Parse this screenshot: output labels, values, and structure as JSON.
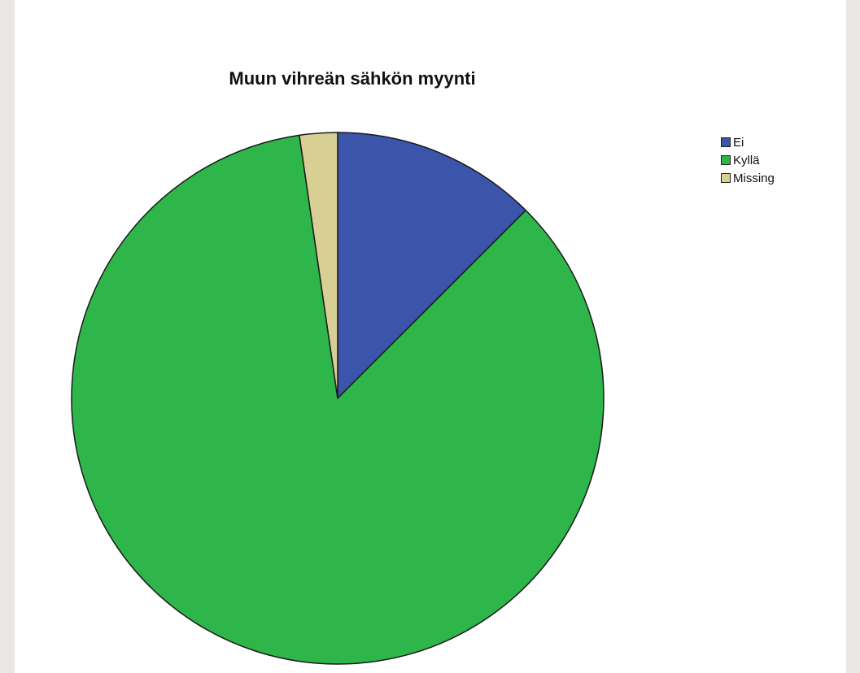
{
  "chart_data": {
    "type": "pie",
    "title": "Muun vihreän sähkön myynti",
    "slices": [
      {
        "label": "Ei",
        "value": 12.5,
        "color": "#3b55aa"
      },
      {
        "label": "Kyllä",
        "value": 85.2,
        "color": "#2eb64b"
      },
      {
        "label": "Missing",
        "value": 2.3,
        "color": "#d8cf94"
      }
    ],
    "start_angle": "12 o'clock",
    "direction": "clockwise",
    "legend_position": "top-right"
  }
}
